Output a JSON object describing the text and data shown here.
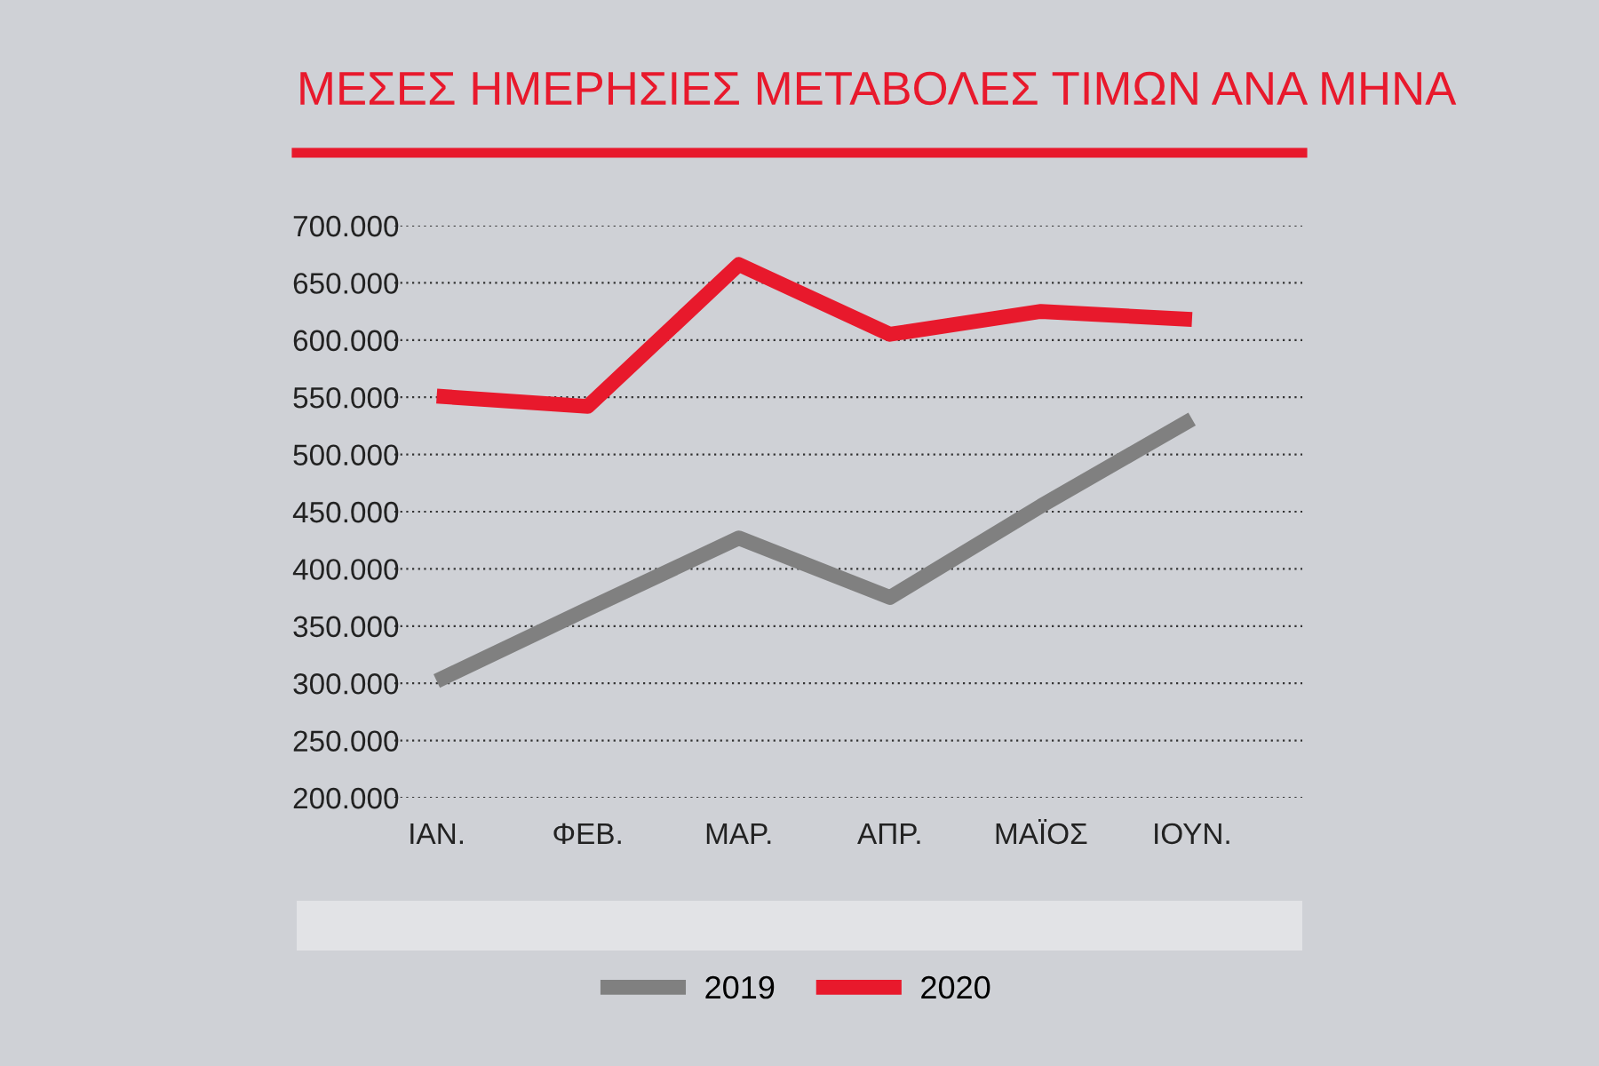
{
  "chart_data": {
    "type": "line",
    "title": "ΜΕΣΕΣ ΗΜΕΡΗΣΙΕΣ ΜΕΤΑΒΟΛΕΣ ΤΙΜΩΝ ΑΝΑ ΜΗΝΑ",
    "categories": [
      "ΙΑΝ.",
      "ΦΕΒ.",
      "ΜΑΡ.",
      "ΑΠΡ.",
      "ΜΑΪΟΣ",
      "ΙΟΥΝ."
    ],
    "series": [
      {
        "name": "2019",
        "color": "#808080",
        "values": [
          302000,
          365000,
          427000,
          375000,
          455000,
          531000
        ]
      },
      {
        "name": "2020",
        "color": "#e8192c",
        "values": [
          551000,
          542000,
          666000,
          605000,
          625000,
          618000
        ]
      }
    ],
    "ylim": [
      200000,
      700000
    ],
    "yticks": [
      {
        "value": 200000,
        "label": "200.000"
      },
      {
        "value": 250000,
        "label": "250.000"
      },
      {
        "value": 300000,
        "label": "300.000"
      },
      {
        "value": 350000,
        "label": "350.000"
      },
      {
        "value": 400000,
        "label": "400.000"
      },
      {
        "value": 450000,
        "label": "450.000"
      },
      {
        "value": 500000,
        "label": "500.000"
      },
      {
        "value": 550000,
        "label": "550.000"
      },
      {
        "value": 600000,
        "label": "600.000"
      },
      {
        "value": 650000,
        "label": "650.000"
      },
      {
        "value": 700000,
        "label": "700.000"
      }
    ],
    "grid": "y",
    "legend": "bottom",
    "line_style": "solid",
    "marker": "none"
  }
}
